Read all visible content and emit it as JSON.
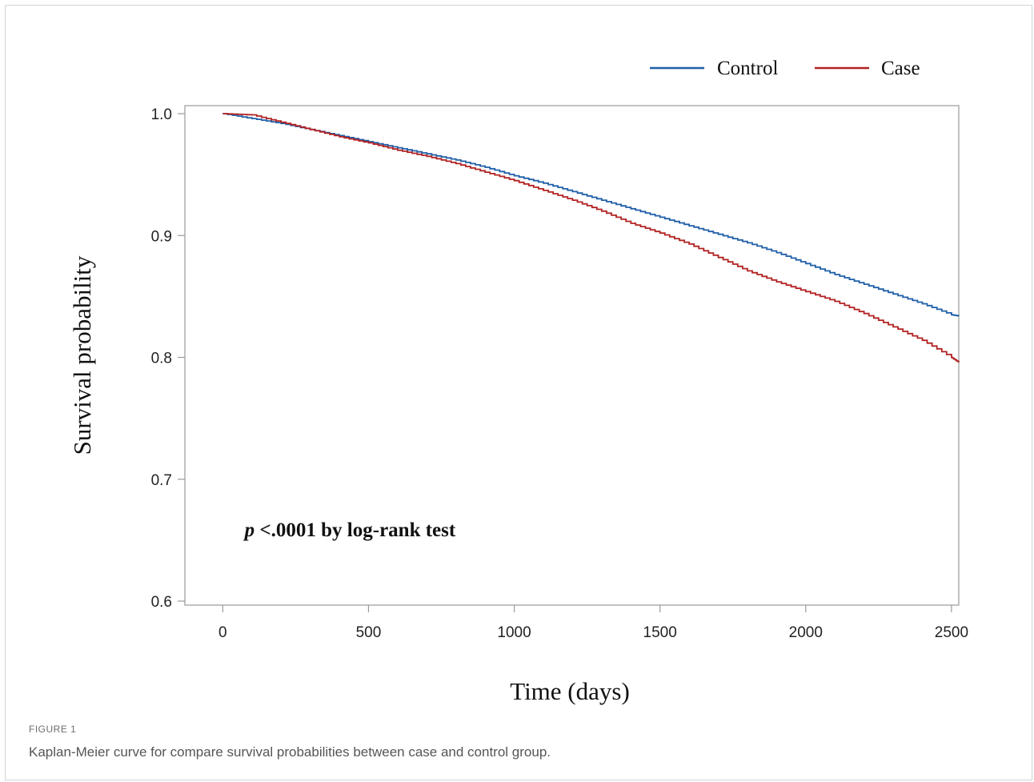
{
  "chart_data": {
    "type": "line",
    "xlabel": "Time (days)",
    "ylabel": "Survival probability",
    "xlim": [
      -130,
      2525
    ],
    "ylim": [
      0.6,
      1.0
    ],
    "x_ticks": [
      0,
      500,
      1000,
      1500,
      2000,
      2500
    ],
    "y_ticks": [
      0.6,
      0.7,
      0.8,
      0.9,
      1.0
    ],
    "y_tick_labels": [
      "0.6",
      "0.7",
      "0.8",
      "0.9",
      "1.0"
    ],
    "legend_position": "top-right",
    "annotation": {
      "p_symbol": "p",
      "text": " <.0001 by log-rank test",
      "x": 75,
      "y": 0.659
    },
    "series": [
      {
        "name": "Control",
        "color": "#1f5fa8",
        "x": [
          0,
          100,
          200,
          300,
          400,
          500,
          600,
          700,
          800,
          900,
          1000,
          1100,
          1200,
          1300,
          1400,
          1500,
          1600,
          1700,
          1800,
          1900,
          2000,
          2100,
          2200,
          2300,
          2400,
          2500,
          2525
        ],
        "y": [
          1.0,
          0.996,
          0.992,
          0.987,
          0.982,
          0.977,
          0.972,
          0.967,
          0.962,
          0.956,
          0.949,
          0.943,
          0.936,
          0.929,
          0.922,
          0.915,
          0.908,
          0.901,
          0.894,
          0.886,
          0.877,
          0.868,
          0.86,
          0.852,
          0.844,
          0.835,
          0.834
        ]
      },
      {
        "name": "Case",
        "color": "#b22222",
        "x": [
          0,
          100,
          200,
          300,
          400,
          500,
          600,
          700,
          800,
          900,
          1000,
          1100,
          1200,
          1300,
          1400,
          1500,
          1600,
          1700,
          1800,
          1900,
          2000,
          2100,
          2200,
          2300,
          2400,
          2500,
          2525
        ],
        "y": [
          1.0,
          0.999,
          0.993,
          0.987,
          0.981,
          0.976,
          0.97,
          0.965,
          0.959,
          0.952,
          0.945,
          0.937,
          0.929,
          0.92,
          0.91,
          0.902,
          0.893,
          0.882,
          0.871,
          0.862,
          0.854,
          0.846,
          0.836,
          0.825,
          0.814,
          0.8,
          0.796
        ]
      }
    ]
  },
  "figure": {
    "label": "FIGURE 1",
    "caption": "Kaplan-Meier curve for compare survival probabilities between case and control group."
  }
}
